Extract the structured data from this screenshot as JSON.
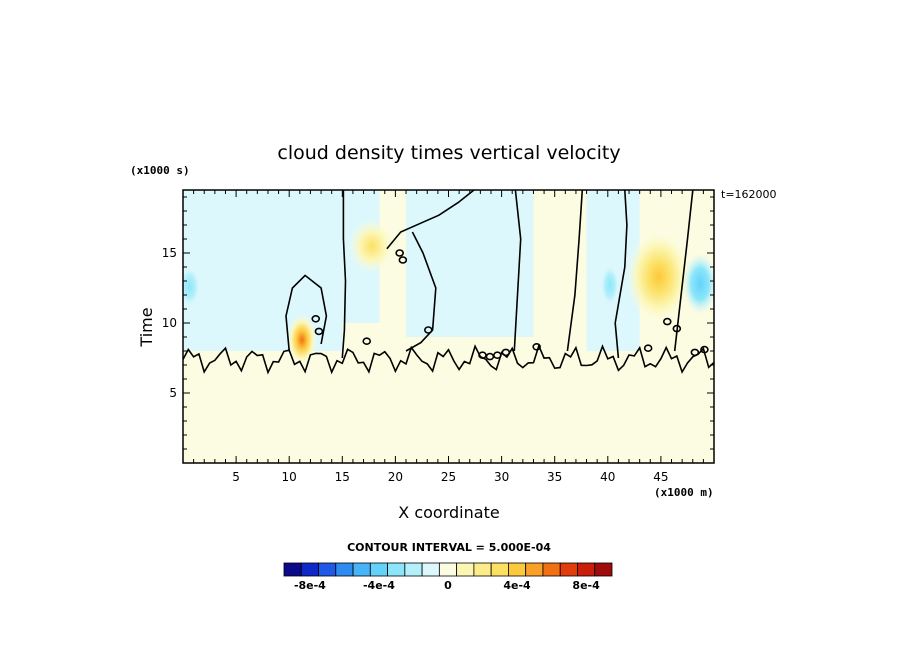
{
  "chart_data": {
    "type": "heatmap",
    "title": "cloud density times vertical velocity",
    "xlabel": "X coordinate",
    "ylabel": "Time",
    "x_units": "(x1000 m)",
    "y_units": "(x1000 s)",
    "time_label": "t=162000",
    "xlim": [
      0,
      50
    ],
    "ylim": [
      0,
      19.5
    ],
    "x_ticks": [
      5,
      10,
      15,
      20,
      25,
      30,
      35,
      40,
      45
    ],
    "y_ticks": [
      5,
      10,
      15
    ],
    "contour_interval_label": "CONTOUR INTERVAL = 5.000E-04",
    "colorbar": {
      "colors": [
        "#0a0a8a",
        "#0f28c8",
        "#1e5ae6",
        "#2e8cf0",
        "#46b4f6",
        "#64d2f8",
        "#8ce6fa",
        "#b4f0fa",
        "#dcf8fc",
        "#fcfce2",
        "#fcf6b4",
        "#fcec8c",
        "#fce064",
        "#fcc83c",
        "#f8a028",
        "#f07014",
        "#e03c0c",
        "#c81e0a",
        "#a00c0c"
      ],
      "tick_labels": [
        "-8e-4",
        "-4e-4",
        "0",
        "4e-4",
        "8e-4"
      ],
      "tick_values": [
        -0.0008,
        -0.0004,
        0,
        0.0004,
        0.0008
      ]
    },
    "field": {
      "background_value": 0.0001,
      "lower_region": {
        "y_max": 7,
        "value": 0.0001
      },
      "upper_negative_regions": [
        {
          "x_range": [
            0,
            15
          ],
          "y_range": [
            8,
            19.5
          ],
          "value": -0.0001
        },
        {
          "x_range": [
            21,
            33
          ],
          "y_range": [
            9,
            19.5
          ],
          "value": -0.0001
        },
        {
          "x_range": [
            38,
            43
          ],
          "y_range": [
            8,
            19.5
          ],
          "value": -0.0001
        }
      ],
      "blobs": [
        {
          "x": 17.8,
          "y": 15.5,
          "rx": 1.6,
          "ry": 1.4,
          "value": 0.0002
        },
        {
          "x": 11.2,
          "y": 8.8,
          "rx": 1.0,
          "ry": 1.3,
          "value": 0.0005
        },
        {
          "x": 44.8,
          "y": 13.3,
          "rx": 2.2,
          "ry": 2.4,
          "value": 0.0004
        },
        {
          "x": 0.6,
          "y": 12.6,
          "rx": 0.7,
          "ry": 1.0,
          "value": -0.0002
        },
        {
          "x": 40.2,
          "y": 12.7,
          "rx": 0.6,
          "ry": 1.0,
          "value": -0.0003
        },
        {
          "x": 48.7,
          "y": 12.8,
          "rx": 1.2,
          "ry": 1.6,
          "value": -0.0002
        }
      ]
    }
  }
}
